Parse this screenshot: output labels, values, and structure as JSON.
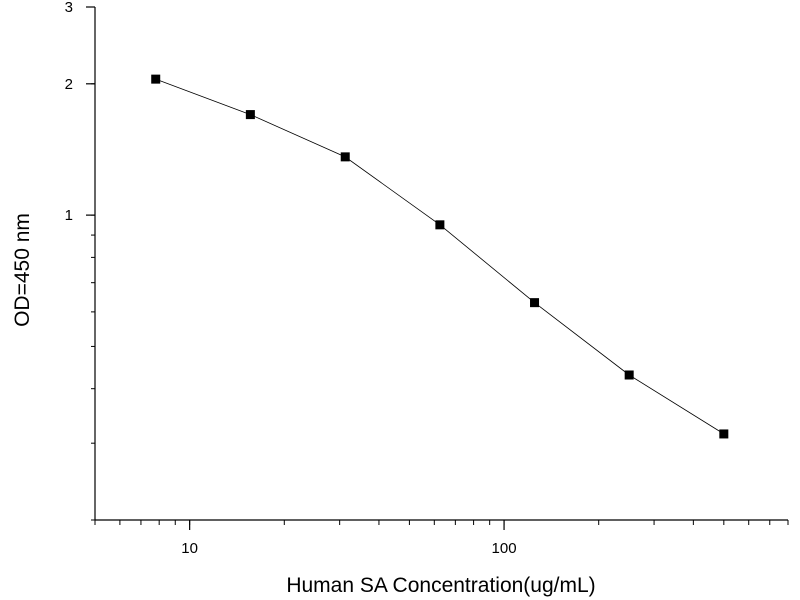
{
  "chart_data": {
    "type": "line",
    "title": "",
    "xlabel": "Human SA  Concentration(ug/mL)",
    "ylabel": "OD=450 nm",
    "x_scale": "log",
    "y_scale": "log",
    "xlim": [
      5,
      800
    ],
    "ylim": [
      0.2,
      3
    ],
    "x_ticks": [
      10,
      100
    ],
    "y_ticks": [
      1,
      2,
      3
    ],
    "grid": false,
    "legend": "none",
    "series": [
      {
        "x": [
          7.8,
          15.6,
          31.25,
          62.5,
          125,
          250,
          500
        ],
        "y": [
          2.05,
          1.7,
          1.36,
          0.95,
          0.63,
          0.43,
          0.315
        ],
        "marker": "square",
        "color": "#000000"
      }
    ]
  }
}
